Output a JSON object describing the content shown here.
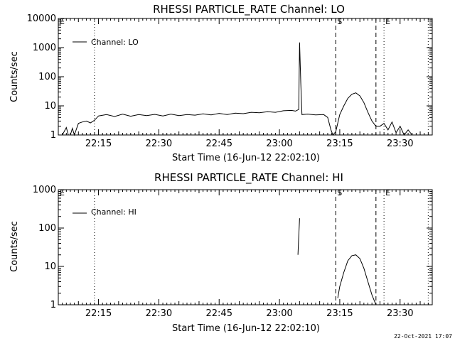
{
  "timestamp": "22-Oct-2021 17:07",
  "chart_data": [
    {
      "type": "line",
      "title": "RHESSI PARTICLE_RATE Channel: LO",
      "xlabel": "Start Time (16-Jun-12 22:02:10)",
      "ylabel": "Counts/sec",
      "yscale": "log",
      "ylim": [
        1,
        10000
      ],
      "ytick_labels": [
        "1",
        "10",
        "100",
        "1000",
        "10000"
      ],
      "xlim": [
        "22:05",
        "23:38"
      ],
      "xtick_labels": [
        "22:15",
        "22:30",
        "22:45",
        "23:00",
        "23:15",
        "23:30"
      ],
      "legend": {
        "entries": [
          "Channel: LO"
        ],
        "position": "top-left"
      },
      "markers": [
        {
          "time": "22:05",
          "style": "dotted",
          "label": "E"
        },
        {
          "time": "22:14",
          "style": "dotted",
          "label": ""
        },
        {
          "time": "23:14",
          "style": "dashed",
          "label": "S"
        },
        {
          "time": "23:24",
          "style": "dashed",
          "label": ""
        },
        {
          "time": "23:26",
          "style": "dotted",
          "label": "E"
        },
        {
          "time": "23:37",
          "style": "dotted",
          "label": ""
        }
      ],
      "series": [
        {
          "name": "Channel: LO",
          "points": [
            [
              "22:06",
              1.0
            ],
            [
              "22:07",
              1.8
            ],
            [
              "22:07.5",
              1.0
            ],
            [
              "22:08",
              1.0
            ],
            [
              "22:08.5",
              1.7
            ],
            [
              "22:09",
              1.0
            ],
            [
              "22:10",
              2.5
            ],
            [
              "22:11",
              2.8
            ],
            [
              "22:12",
              3.0
            ],
            [
              "22:13",
              2.6
            ],
            [
              "22:14",
              3.2
            ],
            [
              "22:15",
              4.5
            ],
            [
              "22:17",
              5.0
            ],
            [
              "22:19",
              4.3
            ],
            [
              "22:21",
              5.2
            ],
            [
              "22:23",
              4.4
            ],
            [
              "22:25",
              5.0
            ],
            [
              "22:27",
              4.6
            ],
            [
              "22:29",
              5.1
            ],
            [
              "22:31",
              4.5
            ],
            [
              "22:33",
              5.2
            ],
            [
              "22:35",
              4.6
            ],
            [
              "22:37",
              5.0
            ],
            [
              "22:39",
              4.8
            ],
            [
              "22:41",
              5.3
            ],
            [
              "22:43",
              4.9
            ],
            [
              "22:45",
              5.5
            ],
            [
              "22:47",
              5.0
            ],
            [
              "22:49",
              5.6
            ],
            [
              "22:51",
              5.4
            ],
            [
              "22:53",
              6.0
            ],
            [
              "22:55",
              5.8
            ],
            [
              "22:57",
              6.3
            ],
            [
              "22:59",
              6.0
            ],
            [
              "23:01",
              6.8
            ],
            [
              "23:03",
              7.0
            ],
            [
              "23:04",
              6.6
            ],
            [
              "23:04.8",
              7.5
            ],
            [
              "23:05",
              1500
            ],
            [
              "23:05.3",
              60
            ],
            [
              "23:05.6",
              5.0
            ],
            [
              "23:07",
              5.2
            ],
            [
              "23:09",
              4.9
            ],
            [
              "23:11",
              5.0
            ],
            [
              "23:12",
              4.0
            ],
            [
              "23:12.8",
              1.5
            ],
            [
              "23:13.3",
              1.0
            ],
            [
              "23:14",
              1.3
            ],
            [
              "23:15",
              5.0
            ],
            [
              "23:16",
              10.0
            ],
            [
              "23:17",
              18.0
            ],
            [
              "23:18",
              25.0
            ],
            [
              "23:19",
              28.0
            ],
            [
              "23:20",
              22.0
            ],
            [
              "23:21",
              13.0
            ],
            [
              "23:22",
              6.0
            ],
            [
              "23:23",
              3.0
            ],
            [
              "23:24",
              2.0
            ],
            [
              "23:25",
              2.0
            ],
            [
              "23:26",
              2.5
            ],
            [
              "23:27",
              1.5
            ],
            [
              "23:28",
              2.8
            ],
            [
              "23:29",
              1.2
            ],
            [
              "23:30",
              2.0
            ],
            [
              "23:31",
              1.0
            ],
            [
              "23:32",
              1.5
            ],
            [
              "23:33",
              1.0
            ]
          ]
        }
      ]
    },
    {
      "type": "line",
      "title": "RHESSI PARTICLE_RATE Channel: HI",
      "xlabel": "Start Time (16-Jun-12 22:02:10)",
      "ylabel": "Counts/sec",
      "yscale": "log",
      "ylim": [
        1,
        1000
      ],
      "ytick_labels": [
        "1",
        "10",
        "100",
        "1000"
      ],
      "xlim": [
        "22:05",
        "23:38"
      ],
      "xtick_labels": [
        "22:15",
        "22:30",
        "22:45",
        "23:00",
        "23:15",
        "23:30"
      ],
      "legend": {
        "entries": [
          "Channel: HI"
        ],
        "position": "top-left"
      },
      "markers": [
        {
          "time": "22:05",
          "style": "dotted",
          "label": "E"
        },
        {
          "time": "22:14",
          "style": "dotted",
          "label": ""
        },
        {
          "time": "23:14",
          "style": "dashed",
          "label": "S"
        },
        {
          "time": "23:24",
          "style": "dashed",
          "label": ""
        },
        {
          "time": "23:26",
          "style": "dotted",
          "label": "E"
        },
        {
          "time": "23:37",
          "style": "dotted",
          "label": ""
        }
      ],
      "series": [
        {
          "name": "Channel: HI",
          "segments": [
            [
              [
                "23:04.6",
                20
              ],
              [
                "23:04.8",
                60
              ],
              [
                "23:05",
                180
              ]
            ],
            [
              [
                "23:14.5",
                1.5
              ],
              [
                "23:15",
                3.0
              ],
              [
                "23:16",
                7.0
              ],
              [
                "23:17",
                14.0
              ],
              [
                "23:18",
                19.0
              ],
              [
                "23:19",
                20.0
              ],
              [
                "23:20",
                16.0
              ],
              [
                "23:21",
                9.0
              ],
              [
                "23:22",
                4.0
              ],
              [
                "23:23",
                1.8
              ],
              [
                "23:24",
                1.0
              ]
            ]
          ]
        }
      ]
    }
  ]
}
